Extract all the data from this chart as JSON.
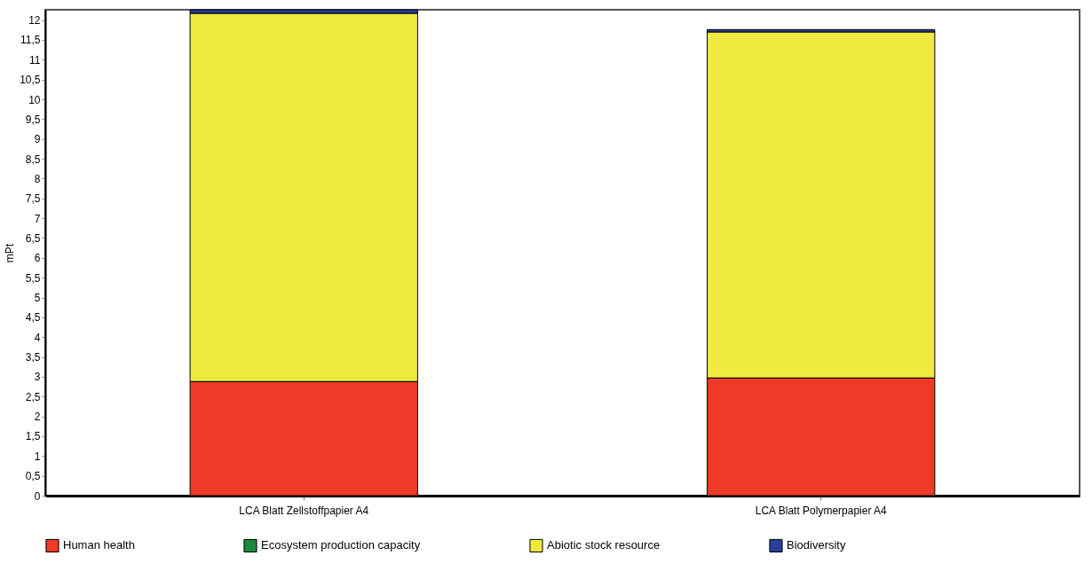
{
  "chart_data": {
    "type": "bar",
    "stacked": true,
    "ylabel": "mPt",
    "categories": [
      "LCA Blatt Zellstoffpapier A4",
      "LCA Blatt Polymerpapier A4"
    ],
    "series": [
      {
        "name": "Human health",
        "color": "#ee3a26",
        "values": [
          2.88,
          2.97
        ]
      },
      {
        "name": "Ecosystem production capacity",
        "color": "#1a8a3a",
        "values": [
          0,
          0
        ]
      },
      {
        "name": "Abiotic stock resource",
        "color": "#f0e940",
        "values": [
          9.29,
          8.73
        ]
      },
      {
        "name": "Biodiversity",
        "color": "#2a3f9a",
        "values": [
          0.09,
          0.06
        ]
      }
    ],
    "ylim": [
      0,
      12.26
    ],
    "yticks": [
      0,
      {
        "value": 0.5,
        "label": "0,5"
      },
      1,
      {
        "value": 1.5,
        "label": "1,5"
      },
      2,
      {
        "value": 2.5,
        "label": "2,5"
      },
      3,
      {
        "value": 3.5,
        "label": "3,5"
      },
      4,
      {
        "value": 4.5,
        "label": "4,5"
      },
      5,
      {
        "value": 5.5,
        "label": "5,5"
      },
      6,
      {
        "value": 6.5,
        "label": "6,5"
      },
      7,
      {
        "value": 7.5,
        "label": "7,5"
      },
      8,
      {
        "value": 8.5,
        "label": "8,5"
      },
      9,
      {
        "value": 9.5,
        "label": "9,5"
      },
      10,
      {
        "value": 10.5,
        "label": "10,5"
      },
      11,
      {
        "value": 11.5,
        "label": "11,5"
      },
      12
    ],
    "legend": "bottom",
    "grid": false
  }
}
